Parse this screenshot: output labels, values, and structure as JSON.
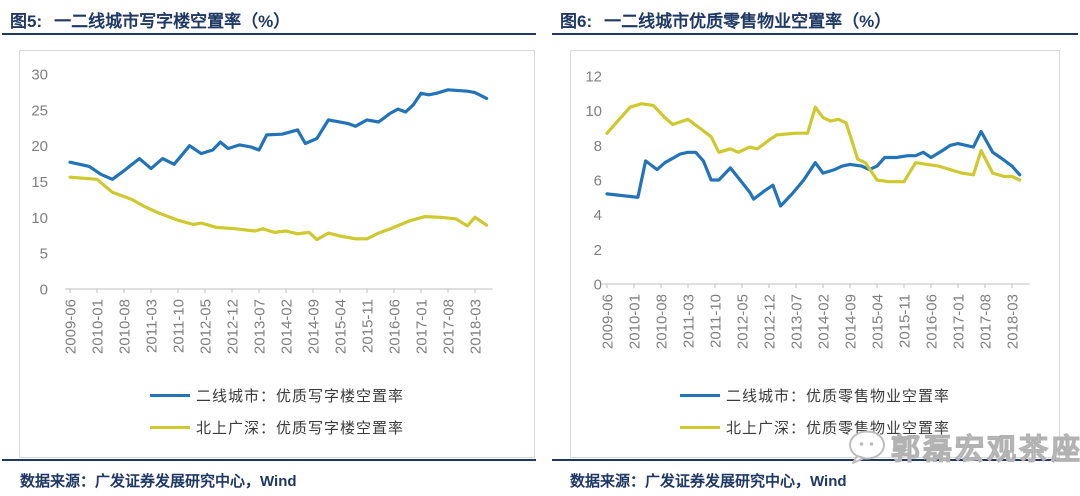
{
  "colors": {
    "line_blue": "#2273b8",
    "line_yellow": "#cdc92e",
    "title_navy": "#1f3864",
    "axis_gray": "#7f7f7f",
    "axis_line_gray": "#bfbfbf",
    "box_border_gray": "#d9d9d9",
    "watermark_gray": "#bdbdbd"
  },
  "watermark": {
    "icon": "chat-bubble-face-icon",
    "text": "郭磊宏观茶座"
  },
  "chart_data": [
    {
      "type": "line",
      "fig_label": "图5:",
      "title": "一二线城市写字楼空置率（%）",
      "source": "数据来源：广发证券发展研究中心，Wind",
      "xlabel": "",
      "ylabel": "",
      "ylim": [
        0,
        30
      ],
      "y_ticks": [
        0,
        5,
        10,
        15,
        20,
        25,
        30
      ],
      "grid": false,
      "legend_position": "bottom",
      "x_range": [
        "2009-06",
        "2018-06"
      ],
      "x_tick_labels": [
        "2009-06",
        "2010-01",
        "2010-08",
        "2011-03",
        "2011-10",
        "2012-05",
        "2012-12",
        "2013-07",
        "2014-02",
        "2014-09",
        "2015-04",
        "2015-11",
        "2016-06",
        "2017-01",
        "2017-08",
        "2018-03"
      ],
      "series": [
        {
          "name": "二线城市：优质写字楼空置率",
          "color": "#2273b8",
          "points": [
            [
              "2009-06",
              17.7
            ],
            [
              "2009-11",
              17.1
            ],
            [
              "2010-02",
              16.0
            ],
            [
              "2010-05",
              15.3
            ],
            [
              "2010-08",
              16.5
            ],
            [
              "2010-12",
              18.2
            ],
            [
              "2011-03",
              16.8
            ],
            [
              "2011-06",
              18.2
            ],
            [
              "2011-09",
              17.4
            ],
            [
              "2012-01",
              20.0
            ],
            [
              "2012-04",
              18.9
            ],
            [
              "2012-07",
              19.4
            ],
            [
              "2012-09",
              20.5
            ],
            [
              "2012-11",
              19.6
            ],
            [
              "2013-02",
              20.1
            ],
            [
              "2013-05",
              19.8
            ],
            [
              "2013-07",
              19.4
            ],
            [
              "2013-09",
              21.5
            ],
            [
              "2014-01",
              21.6
            ],
            [
              "2014-05",
              22.2
            ],
            [
              "2014-07",
              20.3
            ],
            [
              "2014-10",
              21.0
            ],
            [
              "2015-01",
              23.6
            ],
            [
              "2015-06",
              23.1
            ],
            [
              "2015-08",
              22.7
            ],
            [
              "2015-11",
              23.6
            ],
            [
              "2016-02",
              23.3
            ],
            [
              "2016-05",
              24.5
            ],
            [
              "2016-07",
              25.1
            ],
            [
              "2016-09",
              24.7
            ],
            [
              "2016-11",
              25.7
            ],
            [
              "2017-01",
              27.3
            ],
            [
              "2017-03",
              27.1
            ],
            [
              "2017-05",
              27.3
            ],
            [
              "2017-08",
              27.8
            ],
            [
              "2018-01",
              27.6
            ],
            [
              "2018-03",
              27.4
            ],
            [
              "2018-06",
              26.6
            ]
          ]
        },
        {
          "name": "北上广深：优质写字楼空置率",
          "color": "#cdc92e",
          "points": [
            [
              "2009-06",
              15.6
            ],
            [
              "2010-01",
              15.3
            ],
            [
              "2010-05",
              13.5
            ],
            [
              "2010-10",
              12.5
            ],
            [
              "2011-01",
              11.6
            ],
            [
              "2011-05",
              10.6
            ],
            [
              "2011-10",
              9.6
            ],
            [
              "2012-02",
              9.0
            ],
            [
              "2012-04",
              9.2
            ],
            [
              "2012-08",
              8.6
            ],
            [
              "2013-01",
              8.4
            ],
            [
              "2013-06",
              8.1
            ],
            [
              "2013-08",
              8.4
            ],
            [
              "2013-11",
              7.9
            ],
            [
              "2014-02",
              8.1
            ],
            [
              "2014-05",
              7.7
            ],
            [
              "2014-08",
              7.9
            ],
            [
              "2014-10",
              6.9
            ],
            [
              "2015-01",
              7.8
            ],
            [
              "2015-04",
              7.4
            ],
            [
              "2015-08",
              7.0
            ],
            [
              "2015-11",
              7.0
            ],
            [
              "2016-02",
              7.8
            ],
            [
              "2016-06",
              8.6
            ],
            [
              "2016-10",
              9.5
            ],
            [
              "2017-02",
              10.1
            ],
            [
              "2017-06",
              10.0
            ],
            [
              "2017-10",
              9.8
            ],
            [
              "2018-01",
              8.8
            ],
            [
              "2018-03",
              10.0
            ],
            [
              "2018-06",
              8.9
            ]
          ]
        }
      ]
    },
    {
      "type": "line",
      "fig_label": "图6:",
      "title": "一二线城市优质零售物业空置率（%）",
      "source": "数据来源：广发证券发展研究中心，Wind",
      "xlabel": "",
      "ylabel": "",
      "ylim": [
        0,
        12
      ],
      "y_ticks": [
        0,
        2,
        4,
        6,
        8,
        10,
        12
      ],
      "grid": false,
      "legend_position": "bottom",
      "x_range": [
        "2009-06",
        "2018-06"
      ],
      "x_tick_labels": [
        "2009-06",
        "2010-01",
        "2010-08",
        "2011-03",
        "2011-10",
        "2012-05",
        "2012-12",
        "2013-07",
        "2014-02",
        "2014-09",
        "2015-04",
        "2015-11",
        "2016-06",
        "2017-01",
        "2017-08",
        "2018-03"
      ],
      "series": [
        {
          "name": "二线城市：优质零售物业空置率",
          "color": "#2273b8",
          "points": [
            [
              "2009-06",
              5.2
            ],
            [
              "2010-02",
              5.0
            ],
            [
              "2010-04",
              7.1
            ],
            [
              "2010-07",
              6.6
            ],
            [
              "2010-09",
              7.0
            ],
            [
              "2011-01",
              7.5
            ],
            [
              "2011-03",
              7.6
            ],
            [
              "2011-05",
              7.6
            ],
            [
              "2011-07",
              7.1
            ],
            [
              "2011-09",
              6.0
            ],
            [
              "2011-11",
              6.0
            ],
            [
              "2012-02",
              6.7
            ],
            [
              "2012-07",
              5.3
            ],
            [
              "2012-08",
              4.9
            ],
            [
              "2012-11",
              5.4
            ],
            [
              "2013-01",
              5.7
            ],
            [
              "2013-03",
              4.5
            ],
            [
              "2013-06",
              5.2
            ],
            [
              "2013-09",
              6.0
            ],
            [
              "2013-12",
              7.0
            ],
            [
              "2014-02",
              6.4
            ],
            [
              "2014-05",
              6.6
            ],
            [
              "2014-07",
              6.8
            ],
            [
              "2014-09",
              6.9
            ],
            [
              "2014-12",
              6.8
            ],
            [
              "2015-02",
              6.6
            ],
            [
              "2015-04",
              6.8
            ],
            [
              "2015-06",
              7.3
            ],
            [
              "2015-09",
              7.3
            ],
            [
              "2015-12",
              7.4
            ],
            [
              "2016-02",
              7.4
            ],
            [
              "2016-04",
              7.6
            ],
            [
              "2016-06",
              7.3
            ],
            [
              "2016-09",
              7.7
            ],
            [
              "2016-11",
              8.0
            ],
            [
              "2017-01",
              8.1
            ],
            [
              "2017-03",
              8.0
            ],
            [
              "2017-05",
              7.9
            ],
            [
              "2017-07",
              8.8
            ],
            [
              "2017-10",
              7.6
            ],
            [
              "2017-12",
              7.3
            ],
            [
              "2018-03",
              6.8
            ],
            [
              "2018-05",
              6.3
            ]
          ]
        },
        {
          "name": "北上广深：优质零售物业空置率",
          "color": "#cdc92e",
          "points": [
            [
              "2009-06",
              8.7
            ],
            [
              "2009-12",
              10.2
            ],
            [
              "2010-03",
              10.4
            ],
            [
              "2010-06",
              10.3
            ],
            [
              "2010-09",
              9.6
            ],
            [
              "2010-11",
              9.2
            ],
            [
              "2011-03",
              9.5
            ],
            [
              "2011-06",
              9.0
            ],
            [
              "2011-09",
              8.5
            ],
            [
              "2011-11",
              7.6
            ],
            [
              "2012-02",
              7.8
            ],
            [
              "2012-04",
              7.6
            ],
            [
              "2012-07",
              7.9
            ],
            [
              "2012-09",
              7.8
            ],
            [
              "2012-12",
              8.3
            ],
            [
              "2013-02",
              8.6
            ],
            [
              "2013-07",
              8.7
            ],
            [
              "2013-10",
              8.7
            ],
            [
              "2013-12",
              10.2
            ],
            [
              "2014-02",
              9.6
            ],
            [
              "2014-04",
              9.4
            ],
            [
              "2014-06",
              9.5
            ],
            [
              "2014-08",
              9.3
            ],
            [
              "2014-11",
              7.2
            ],
            [
              "2015-01",
              7.0
            ],
            [
              "2015-04",
              6.0
            ],
            [
              "2015-07",
              5.9
            ],
            [
              "2015-11",
              5.9
            ],
            [
              "2016-02",
              7.0
            ],
            [
              "2016-05",
              6.9
            ],
            [
              "2016-08",
              6.8
            ],
            [
              "2016-11",
              6.6
            ],
            [
              "2017-02",
              6.4
            ],
            [
              "2017-05",
              6.3
            ],
            [
              "2017-07",
              7.7
            ],
            [
              "2017-10",
              6.4
            ],
            [
              "2018-01",
              6.2
            ],
            [
              "2018-03",
              6.2
            ],
            [
              "2018-05",
              6.0
            ]
          ]
        }
      ]
    }
  ]
}
